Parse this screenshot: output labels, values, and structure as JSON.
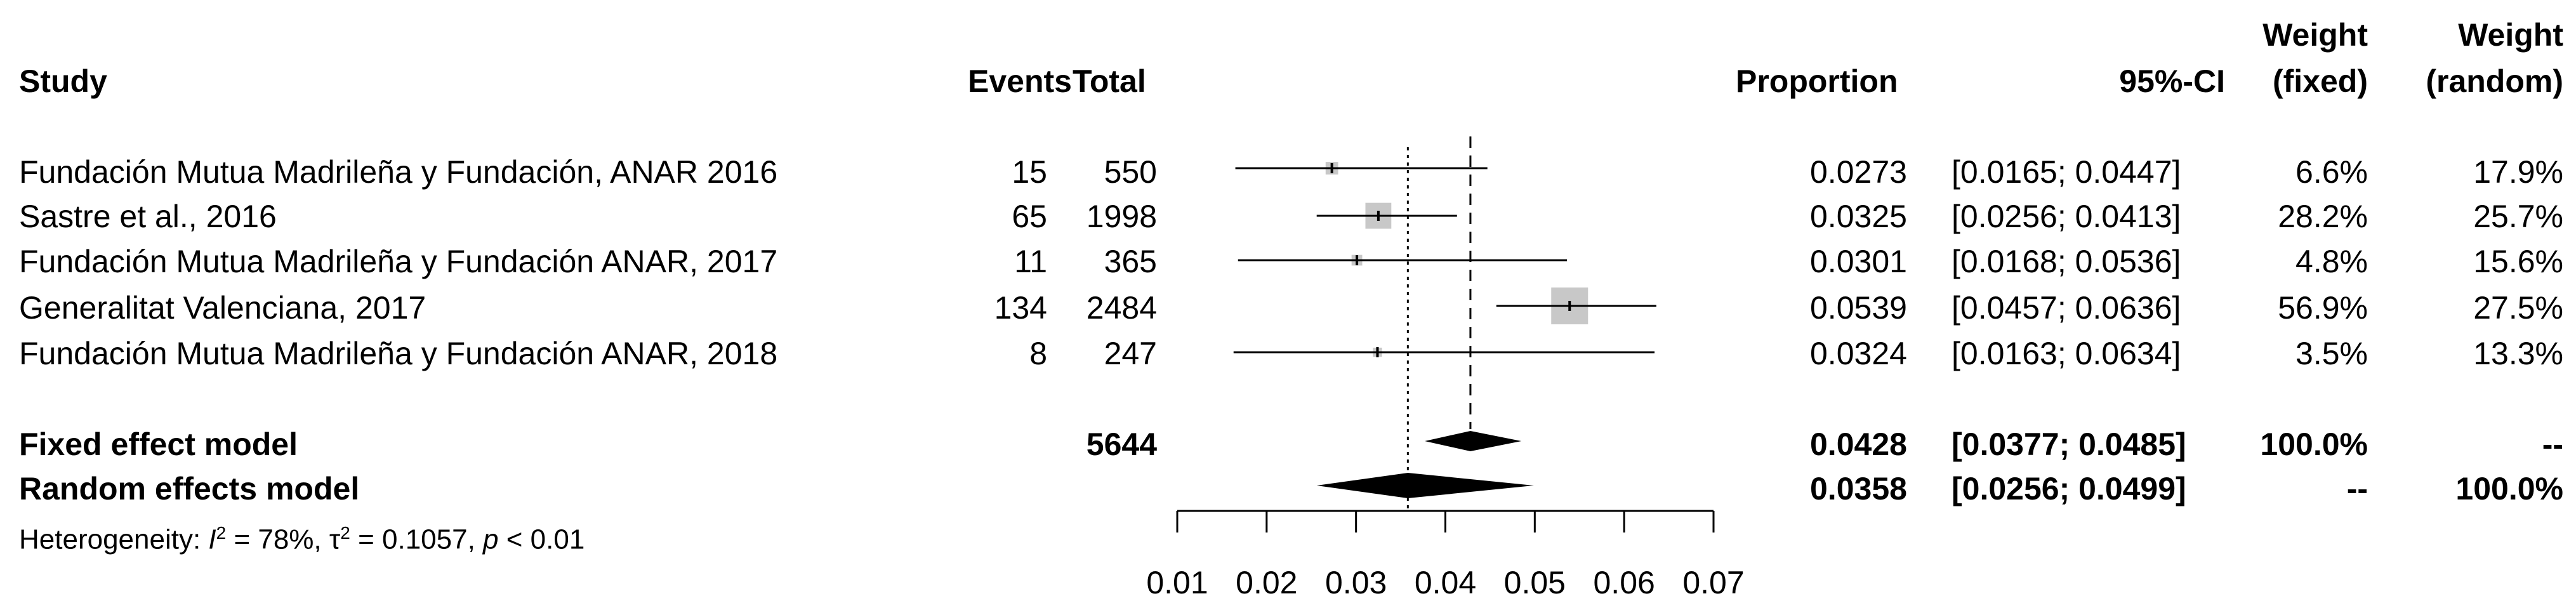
{
  "headers": {
    "study": "Study",
    "events": "Events",
    "total": "Total",
    "proportion": "Proportion",
    "ci": "95%-CI",
    "weight_fixed_l1": "Weight",
    "weight_fixed_l2": "(fixed)",
    "weight_random_l1": "Weight",
    "weight_random_l2": "(random)"
  },
  "studies": [
    {
      "study": "Fundación Mutua Madrileña y Fundación, ANAR 2016",
      "events": "15",
      "total": "550",
      "proportion": "0.0273",
      "ci": "[0.0165; 0.0447]",
      "w_fixed": "6.6%",
      "w_random": "17.9%"
    },
    {
      "study": "Sastre et al., 2016",
      "events": "65",
      "total": "1998",
      "proportion": "0.0325",
      "ci": "[0.0256; 0.0413]",
      "w_fixed": "28.2%",
      "w_random": "25.7%"
    },
    {
      "study": "Fundación Mutua Madrileña y Fundación ANAR, 2017",
      "events": "11",
      "total": "365",
      "proportion": "0.0301",
      "ci": "[0.0168; 0.0536]",
      "w_fixed": "4.8%",
      "w_random": "15.6%"
    },
    {
      "study": "Generalitat Valenciana, 2017",
      "events": "134",
      "total": "2484",
      "proportion": "0.0539",
      "ci": "[0.0457; 0.0636]",
      "w_fixed": "56.9%",
      "w_random": "27.5%"
    },
    {
      "study": "Fundación Mutua Madrileña y Fundación ANAR, 2018",
      "events": "8",
      "total": "247",
      "proportion": "0.0324",
      "ci": "[0.0163; 0.0634]",
      "w_fixed": "3.5%",
      "w_random": "13.3%"
    }
  ],
  "fixed": {
    "label": "Fixed effect model",
    "total": "5644",
    "proportion": "0.0428",
    "ci": "[0.0377; 0.0485]",
    "w_fixed": "100.0%",
    "w_random": "--"
  },
  "random": {
    "label": "Random effects model",
    "proportion": "0.0358",
    "ci": "[0.0256; 0.0499]",
    "w_fixed": "--",
    "w_random": "100.0%"
  },
  "heterogeneity": {
    "prefix": "Heterogeneity: ",
    "i2_sym": "I",
    "i2_sup": "2",
    "i2_val": " = 78%, ",
    "tau_sym": "τ",
    "tau_sup": "2",
    "tau_val": " = 0.1057, ",
    "p_sym": "p",
    "p_val": " < 0.01"
  },
  "chart_data": {
    "type": "forest",
    "xlim": [
      0.01,
      0.07
    ],
    "ticks": [
      "0.01",
      "0.02",
      "0.03",
      "0.04",
      "0.05",
      "0.06",
      "0.07"
    ],
    "tick_values": [
      0.01,
      0.02,
      0.03,
      0.04,
      0.05,
      0.06,
      0.07
    ],
    "studies": [
      {
        "est": 0.0273,
        "lo": 0.0165,
        "hi": 0.0447,
        "weight_fixed": 6.6
      },
      {
        "est": 0.0325,
        "lo": 0.0256,
        "hi": 0.0413,
        "weight_fixed": 28.2
      },
      {
        "est": 0.0301,
        "lo": 0.0168,
        "hi": 0.0536,
        "weight_fixed": 4.8
      },
      {
        "est": 0.0539,
        "lo": 0.0457,
        "hi": 0.0636,
        "weight_fixed": 56.9
      },
      {
        "est": 0.0324,
        "lo": 0.0163,
        "hi": 0.0634,
        "weight_fixed": 3.5
      }
    ],
    "fixed": {
      "est": 0.0428,
      "lo": 0.0377,
      "hi": 0.0485
    },
    "random": {
      "est": 0.0358,
      "lo": 0.0256,
      "hi": 0.0499
    },
    "colors": {
      "box": "#c8c8c8",
      "line": "#000000",
      "diamond": "#000000"
    }
  }
}
